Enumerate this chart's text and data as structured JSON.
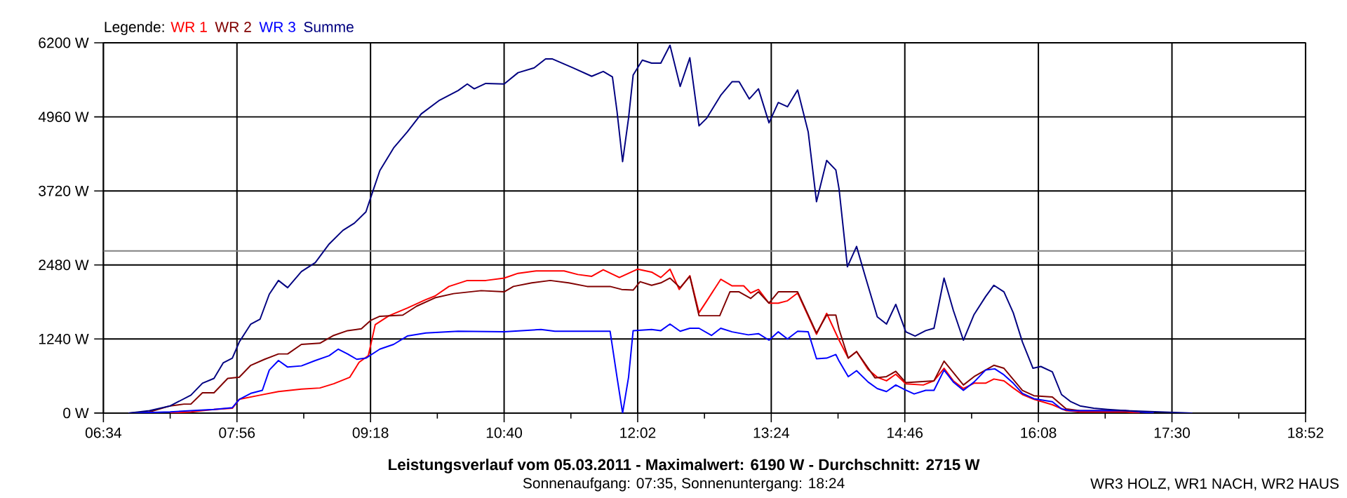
{
  "chart_data": {
    "type": "line",
    "title": "Leistungsverlauf vom 05.03.2011 - Maximalwert: 6190 W - Durchschnitt: 2715 W",
    "subtitle": "Sonnenaufgang: 07:35, Sonnenuntergang: 18:24",
    "legend_title": "Legende:",
    "annotations": [
      "WR3 HOLZ, WR1 NACH, WR2 HAUS"
    ],
    "xlim": [
      6.5667,
      18.8667
    ],
    "xticks": [
      {
        "value": 6.5667,
        "label": "06:34"
      },
      {
        "value": 7.25,
        "label": null
      },
      {
        "value": 7.9333,
        "label": "07:56"
      },
      {
        "value": 8.6167,
        "label": null
      },
      {
        "value": 9.3,
        "label": "09:18"
      },
      {
        "value": 9.9833,
        "label": null
      },
      {
        "value": 10.6667,
        "label": "10:40"
      },
      {
        "value": 11.35,
        "label": null
      },
      {
        "value": 12.0333,
        "label": "12:02"
      },
      {
        "value": 12.7167,
        "label": null
      },
      {
        "value": 13.4,
        "label": "13:24"
      },
      {
        "value": 14.0833,
        "label": null
      },
      {
        "value": 14.7667,
        "label": "14:46"
      },
      {
        "value": 15.45,
        "label": null
      },
      {
        "value": 16.1333,
        "label": "16:08"
      },
      {
        "value": 16.8167,
        "label": null
      },
      {
        "value": 17.5,
        "label": "17:30"
      },
      {
        "value": 18.1833,
        "label": null
      },
      {
        "value": 18.8667,
        "label": "18:52"
      }
    ],
    "ylim": [
      0,
      6200
    ],
    "yticks": [
      {
        "value": 0,
        "label": "0 W"
      },
      {
        "value": 1240,
        "label": "1240 W"
      },
      {
        "value": 2480,
        "label": "2480 W"
      },
      {
        "value": 3720,
        "label": "3720 W"
      },
      {
        "value": 4960,
        "label": "4960 W"
      },
      {
        "value": 6200,
        "label": "6200 W"
      }
    ],
    "grid": true,
    "legend": "top left",
    "ref_lines": [
      {
        "axis": "y",
        "value": 2715,
        "color": "#808080"
      }
    ],
    "series": [
      {
        "name": "WR 1",
        "color": "#ff0000",
        "x": [
          7.25,
          7.462,
          7.698,
          7.886,
          7.957,
          8.169,
          8.358,
          8.593,
          8.782,
          8.923,
          9.088,
          9.183,
          9.277,
          9.348,
          9.489,
          9.677,
          9.866,
          9.96,
          10.102,
          10.29,
          10.479,
          10.667,
          10.809,
          10.997,
          11.28,
          11.421,
          11.563,
          11.681,
          11.846,
          12.034,
          12.176,
          12.27,
          12.364,
          12.458,
          12.567,
          12.661,
          12.741,
          12.883,
          13.0,
          13.118,
          13.189,
          13.269,
          13.377,
          13.472,
          13.566,
          13.67,
          13.863,
          13.967,
          14.094,
          14.188,
          14.273,
          14.391,
          14.485,
          14.579,
          14.674,
          14.777,
          14.956,
          15.065,
          15.168,
          15.263,
          15.366,
          15.475,
          15.593,
          15.678,
          15.781,
          15.876,
          15.97,
          16.088,
          16.276,
          16.418,
          16.559,
          17.03,
          17.172
        ],
        "values": [
          0,
          20,
          60,
          80,
          230,
          300,
          360,
          400,
          420,
          490,
          600,
          850,
          960,
          1480,
          1630,
          1760,
          1900,
          1960,
          2120,
          2220,
          2220,
          2260,
          2340,
          2380,
          2380,
          2320,
          2290,
          2400,
          2270,
          2410,
          2360,
          2270,
          2410,
          2070,
          2300,
          1680,
          1880,
          2240,
          2130,
          2130,
          2010,
          2070,
          1840,
          1840,
          1880,
          2010,
          1320,
          1670,
          1220,
          920,
          1030,
          730,
          600,
          540,
          650,
          490,
          470,
          540,
          750,
          540,
          410,
          500,
          500,
          570,
          540,
          420,
          310,
          230,
          140,
          40,
          20,
          20,
          0
        ]
      },
      {
        "name": "WR 2",
        "color": "#800000",
        "x": [
          6.826,
          7.038,
          7.25,
          7.392,
          7.462,
          7.58,
          7.698,
          7.839,
          7.957,
          8.075,
          8.216,
          8.358,
          8.452,
          8.593,
          8.782,
          8.923,
          9.065,
          9.206,
          9.3,
          9.395,
          9.63,
          9.772,
          9.96,
          10.149,
          10.432,
          10.667,
          10.762,
          10.95,
          11.139,
          11.327,
          11.516,
          11.751,
          11.869,
          11.987,
          12.058,
          12.176,
          12.27,
          12.364,
          12.468,
          12.567,
          12.661,
          12.873,
          12.977,
          13.071,
          13.189,
          13.269,
          13.377,
          13.472,
          13.67,
          13.863,
          13.967,
          14.061,
          14.094,
          14.188,
          14.273,
          14.461,
          14.579,
          14.674,
          14.777,
          15.065,
          15.168,
          15.366,
          15.475,
          15.678,
          15.781,
          15.97,
          16.088,
          16.276,
          16.418,
          16.559,
          17.03,
          17.313
        ],
        "values": [
          0,
          20,
          120,
          150,
          150,
          340,
          340,
          580,
          600,
          800,
          900,
          990,
          990,
          1150,
          1170,
          1300,
          1380,
          1410,
          1550,
          1620,
          1640,
          1790,
          1930,
          2000,
          2050,
          2030,
          2120,
          2180,
          2220,
          2180,
          2120,
          2120,
          2070,
          2060,
          2200,
          2140,
          2180,
          2260,
          2100,
          2290,
          1630,
          1630,
          2030,
          2030,
          1920,
          2030,
          1840,
          2030,
          2030,
          1340,
          1640,
          1640,
          1400,
          920,
          1030,
          590,
          610,
          700,
          510,
          540,
          870,
          470,
          610,
          800,
          750,
          380,
          290,
          270,
          70,
          40,
          40,
          0
        ]
      },
      {
        "name": "WR 3",
        "color": "#0000ff",
        "x": [
          6.826,
          7.25,
          7.462,
          7.698,
          7.886,
          7.957,
          8.075,
          8.193,
          8.264,
          8.358,
          8.452,
          8.593,
          8.735,
          8.876,
          8.97,
          9.065,
          9.159,
          9.253,
          9.395,
          9.536,
          9.677,
          9.866,
          10.196,
          10.667,
          11.044,
          11.186,
          11.751,
          11.822,
          11.879,
          11.94,
          11.987,
          12.176,
          12.27,
          12.364,
          12.468,
          12.567,
          12.661,
          12.788,
          12.883,
          13.0,
          13.165,
          13.269,
          13.377,
          13.472,
          13.566,
          13.67,
          13.778,
          13.863,
          13.967,
          14.061,
          14.094,
          14.188,
          14.273,
          14.391,
          14.485,
          14.579,
          14.674,
          14.768,
          14.862,
          14.98,
          15.065,
          15.168,
          15.263,
          15.366,
          15.475,
          15.593,
          15.687,
          15.781,
          15.876,
          15.97,
          16.088,
          16.276,
          16.37,
          16.465,
          17.03,
          17.313
        ],
        "values": [
          0,
          20,
          40,
          60,
          90,
          230,
          330,
          380,
          720,
          880,
          770,
          790,
          880,
          960,
          1070,
          990,
          900,
          920,
          1070,
          1150,
          1290,
          1340,
          1370,
          1360,
          1400,
          1370,
          1370,
          600,
          0,
          600,
          1380,
          1400,
          1380,
          1490,
          1370,
          1420,
          1420,
          1300,
          1420,
          1360,
          1310,
          1330,
          1220,
          1360,
          1240,
          1370,
          1360,
          910,
          920,
          980,
          870,
          610,
          710,
          520,
          410,
          360,
          470,
          390,
          320,
          380,
          380,
          720,
          520,
          380,
          520,
          720,
          740,
          640,
          500,
          330,
          240,
          190,
          70,
          40,
          40,
          0
        ]
      },
      {
        "name": "Summe",
        "color": "#000080",
        "x": [
          6.826,
          7.038,
          7.25,
          7.462,
          7.58,
          7.698,
          7.792,
          7.886,
          7.957,
          8.075,
          8.169,
          8.264,
          8.358,
          8.452,
          8.593,
          8.735,
          8.876,
          9.018,
          9.135,
          9.253,
          9.3,
          9.395,
          9.536,
          9.677,
          9.819,
          10.007,
          10.196,
          10.29,
          10.361,
          10.479,
          10.667,
          10.809,
          10.974,
          11.091,
          11.162,
          11.374,
          11.563,
          11.681,
          11.775,
          11.822,
          11.879,
          11.94,
          11.987,
          12.081,
          12.176,
          12.27,
          12.364,
          12.468,
          12.567,
          12.661,
          12.741,
          12.883,
          13.0,
          13.071,
          13.175,
          13.269,
          13.377,
          13.472,
          13.566,
          13.67,
          13.778,
          13.863,
          13.967,
          14.061,
          14.094,
          14.179,
          14.273,
          14.367,
          14.485,
          14.579,
          14.674,
          14.777,
          14.872,
          14.98,
          15.065,
          15.168,
          15.263,
          15.366,
          15.475,
          15.593,
          15.678,
          15.781,
          15.876,
          15.97,
          16.078,
          16.158,
          16.276,
          16.37,
          16.465,
          16.559,
          16.7,
          16.842,
          17.03,
          17.709
        ],
        "values": [
          0,
          40,
          120,
          300,
          500,
          580,
          840,
          920,
          1190,
          1490,
          1570,
          1990,
          2220,
          2100,
          2370,
          2520,
          2830,
          3060,
          3180,
          3370,
          3600,
          4060,
          4440,
          4710,
          5010,
          5240,
          5400,
          5510,
          5430,
          5520,
          5510,
          5700,
          5780,
          5930,
          5930,
          5780,
          5640,
          5720,
          5630,
          5050,
          4210,
          4940,
          5660,
          5910,
          5860,
          5860,
          6160,
          5470,
          5950,
          4810,
          4940,
          5320,
          5550,
          5550,
          5260,
          5430,
          4860,
          5200,
          5130,
          5410,
          4710,
          3540,
          4230,
          4070,
          3750,
          2450,
          2790,
          2260,
          1610,
          1490,
          1820,
          1360,
          1290,
          1380,
          1420,
          2260,
          1720,
          1220,
          1650,
          1950,
          2140,
          2030,
          1680,
          1190,
          750,
          780,
          690,
          310,
          190,
          120,
          80,
          60,
          40,
          0
        ]
      }
    ]
  }
}
